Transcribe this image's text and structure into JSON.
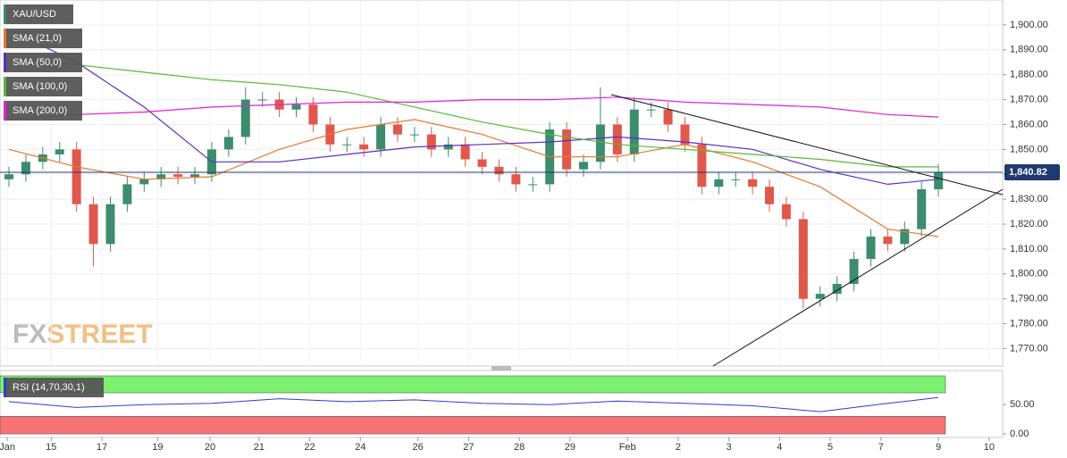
{
  "chart_data": {
    "type": "candlestick",
    "title": "XAU/USD",
    "watermark": [
      "FX",
      "STREET"
    ],
    "x": [
      0,
      1,
      2,
      3,
      4,
      5,
      6,
      7,
      8,
      9,
      10,
      11,
      12,
      13,
      14,
      15,
      16,
      17,
      18,
      19,
      20,
      21,
      22,
      23,
      24,
      25,
      26,
      27,
      28,
      29,
      30,
      31,
      32,
      33,
      34,
      35,
      36,
      37,
      38,
      39,
      40,
      41,
      42,
      43,
      44,
      45,
      46,
      47,
      48,
      49,
      50,
      51,
      52,
      53,
      54,
      55
    ],
    "open": [
      1838,
      1840,
      1845,
      1848,
      1850,
      1828,
      1812,
      1828,
      1836,
      1838,
      1840,
      1839,
      1840,
      1850,
      1855,
      1870,
      1870,
      1866,
      1868,
      1860,
      1852,
      1852,
      1850,
      1860,
      1856,
      1856,
      1850,
      1852,
      1846,
      1843,
      1840,
      1836,
      1836,
      1858,
      1842,
      1845,
      1860,
      1848,
      1866,
      1866,
      1860,
      1852,
      1835,
      1838,
      1838,
      1835,
      1828,
      1822,
      1790,
      1792,
      1796,
      1806,
      1815,
      1812,
      1818,
      1834
    ],
    "high": [
      1843,
      1848,
      1851,
      1853,
      1853,
      1831,
      1831,
      1839,
      1841,
      1843,
      1843,
      1843,
      1853,
      1858,
      1875,
      1873,
      1873,
      1871,
      1871,
      1863,
      1855,
      1855,
      1863,
      1863,
      1859,
      1859,
      1855,
      1855,
      1849,
      1846,
      1843,
      1839,
      1861,
      1861,
      1848,
      1875,
      1863,
      1871,
      1869,
      1869,
      1863,
      1855,
      1841,
      1841,
      1841,
      1838,
      1831,
      1825,
      1795,
      1799,
      1809,
      1818,
      1818,
      1821,
      1837,
      1844
    ],
    "low": [
      1835,
      1837,
      1842,
      1845,
      1825,
      1803,
      1809,
      1825,
      1833,
      1835,
      1836,
      1836,
      1837,
      1847,
      1852,
      1867,
      1863,
      1863,
      1857,
      1849,
      1849,
      1847,
      1847,
      1853,
      1853,
      1847,
      1847,
      1843,
      1840,
      1837,
      1833,
      1833,
      1833,
      1839,
      1839,
      1842,
      1845,
      1845,
      1863,
      1857,
      1849,
      1832,
      1832,
      1835,
      1832,
      1825,
      1819,
      1786,
      1787,
      1789,
      1793,
      1803,
      1809,
      1809,
      1815,
      1831
    ],
    "close": [
      1840,
      1845,
      1848,
      1850,
      1828,
      1812,
      1828,
      1836,
      1838,
      1840,
      1839,
      1840,
      1850,
      1855,
      1870,
      1870,
      1866,
      1868,
      1860,
      1852,
      1852,
      1850,
      1860,
      1856,
      1856,
      1850,
      1852,
      1846,
      1843,
      1840,
      1836,
      1836,
      1858,
      1842,
      1845,
      1860,
      1848,
      1866,
      1866,
      1860,
      1852,
      1835,
      1838,
      1838,
      1835,
      1828,
      1822,
      1790,
      1792,
      1796,
      1806,
      1815,
      1812,
      1818,
      1834,
      1841
    ],
    "up_color": "#3d8c6e",
    "down_color": "#e0584c",
    "series": [
      {
        "name": "SMA (21,0)",
        "color": "#e8772a",
        "x": [
          0,
          4,
          8,
          12,
          16,
          20,
          24,
          28,
          32,
          36,
          40,
          44,
          48,
          52,
          55
        ],
        "values": [
          1850,
          1843,
          1838,
          1839,
          1850,
          1858,
          1862,
          1856,
          1847,
          1847,
          1852,
          1845,
          1835,
          1818,
          1815
        ]
      },
      {
        "name": "SMA (50,0)",
        "color": "#5a2fc4",
        "x": [
          0,
          4,
          8,
          12,
          16,
          20,
          24,
          28,
          32,
          36,
          40,
          44,
          48,
          52,
          55
        ],
        "values": [
          1898,
          1885,
          1867,
          1845,
          1845,
          1848,
          1851,
          1852,
          1853,
          1855,
          1853,
          1850,
          1842,
          1836,
          1838
        ]
      },
      {
        "name": "SMA (100,0)",
        "color": "#58b833",
        "x": [
          0,
          4,
          8,
          12,
          16,
          20,
          24,
          28,
          32,
          36,
          40,
          44,
          48,
          52,
          55
        ],
        "values": [
          1887,
          1884,
          1881,
          1878,
          1876,
          1873,
          1867,
          1861,
          1856,
          1852,
          1850,
          1848,
          1846,
          1843,
          1843
        ]
      },
      {
        "name": "SMA (200,0)",
        "color": "#e020d8",
        "x": [
          0,
          4,
          8,
          12,
          16,
          20,
          24,
          28,
          32,
          36,
          40,
          44,
          48,
          52,
          55
        ],
        "values": [
          1862,
          1864,
          1865,
          1867,
          1868,
          1869,
          1869,
          1870,
          1870,
          1871,
          1869,
          1868,
          1867,
          1864,
          1863
        ]
      }
    ],
    "last_price": {
      "value": 1840.82,
      "label": "1,840.82"
    },
    "xlim": [
      -0.53,
      58.8
    ],
    "xticks": [
      {
        "value": -0.1,
        "label": "Jan"
      },
      {
        "value": 2.5,
        "label": "15"
      },
      {
        "value": 5.5,
        "label": "17"
      },
      {
        "value": 8.8,
        "label": "19"
      },
      {
        "value": 11.9,
        "label": "20"
      },
      {
        "value": 14.8,
        "label": "21"
      },
      {
        "value": 17.8,
        "label": "22"
      },
      {
        "value": 20.8,
        "label": "24"
      },
      {
        "value": 24.2,
        "label": "26"
      },
      {
        "value": 27.2,
        "label": "27"
      },
      {
        "value": 30.2,
        "label": "28"
      },
      {
        "value": 33.2,
        "label": "29"
      },
      {
        "value": 36.6,
        "label": "Feb"
      },
      {
        "value": 39.6,
        "label": "2"
      },
      {
        "value": 42.6,
        "label": "3"
      },
      {
        "value": 45.6,
        "label": "4"
      },
      {
        "value": 48.6,
        "label": "5"
      },
      {
        "value": 51.6,
        "label": "7"
      },
      {
        "value": 55,
        "label": "9"
      },
      {
        "value": 58,
        "label": "10"
      }
    ],
    "ylim": [
      1763,
      1910
    ],
    "yticks": [
      {
        "value": 1770,
        "label": "1,770.00"
      },
      {
        "value": 1780,
        "label": "1,780.00"
      },
      {
        "value": 1790,
        "label": "1,790.00"
      },
      {
        "value": 1800,
        "label": "1,800.00"
      },
      {
        "value": 1810,
        "label": "1,810.00"
      },
      {
        "value": 1820,
        "label": "1,820.00"
      },
      {
        "value": 1830,
        "label": "1,830.00"
      },
      {
        "value": 1840,
        "label": "1,840.00"
      },
      {
        "value": 1850,
        "label": "1,850.00"
      },
      {
        "value": 1860,
        "label": "1,860.00"
      },
      {
        "value": 1870,
        "label": "1,870.00"
      },
      {
        "value": 1880,
        "label": "1,880.00"
      },
      {
        "value": 1890,
        "label": "1,890.00"
      },
      {
        "value": 1900,
        "label": "1,900.00"
      }
    ],
    "rsi": {
      "name": "RSI (14,70,30,1)",
      "color": "#2a3fd0",
      "x": [
        0,
        4,
        8,
        12,
        16,
        20,
        24,
        28,
        32,
        36,
        40,
        44,
        48,
        52,
        55
      ],
      "values": [
        55,
        45,
        50,
        52,
        60,
        55,
        58,
        52,
        50,
        56,
        52,
        48,
        38,
        52,
        62
      ],
      "ylim": [
        -6,
        108
      ],
      "yticks": [
        {
          "value": 0,
          "label": "0.00"
        },
        {
          "value": 50,
          "label": "50.00"
        }
      ],
      "upper": 70,
      "lower": 30,
      "upper_color": "#7df06f",
      "lower_color": "#f77474"
    }
  }
}
